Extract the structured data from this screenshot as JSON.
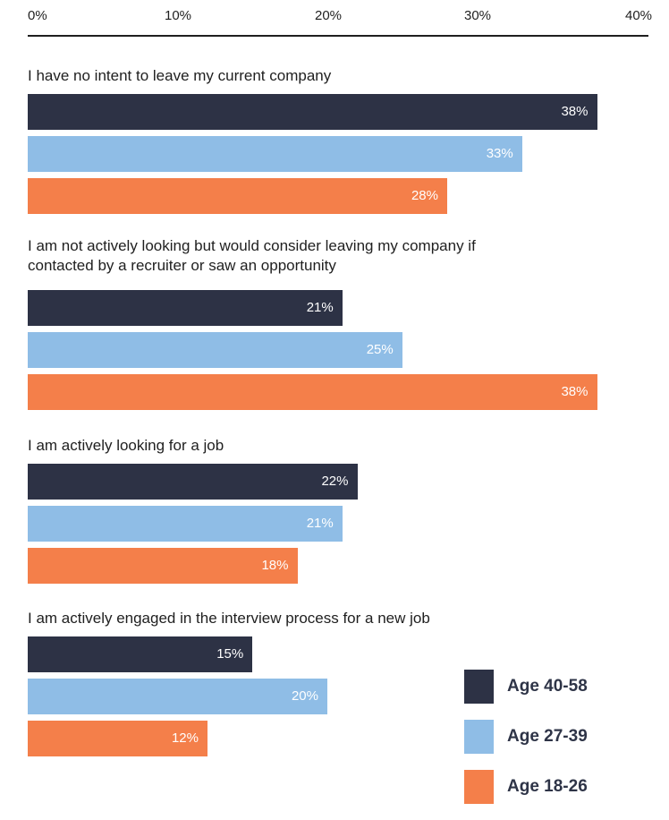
{
  "chart_data": {
    "type": "bar",
    "orientation": "horizontal",
    "xlim": [
      0,
      40
    ],
    "x_ticks": [
      "0%",
      "10%",
      "20%",
      "30%",
      "40%"
    ],
    "categories": [
      "I have no intent to leave my current company",
      "I am not actively looking but would consider leaving my company if contacted by a recruiter or saw an opportunity",
      "I am actively looking for a job",
      "I am actively engaged in the interview process for a new job"
    ],
    "series": [
      {
        "name": "Age 40-58",
        "color": "#2d3245",
        "values": [
          38,
          21,
          22,
          15
        ],
        "labels": [
          "38%",
          "21%",
          "22%",
          "15%"
        ]
      },
      {
        "name": "Age 27-39",
        "color": "#8fbde6",
        "values": [
          33,
          25,
          21,
          20
        ],
        "labels": [
          "33%",
          "25%",
          "21%",
          "20%"
        ]
      },
      {
        "name": "Age 18-26",
        "color": "#f47f4a",
        "values": [
          28,
          38,
          18,
          12
        ],
        "labels": [
          "28%",
          "38%",
          "18%",
          "12%"
        ]
      }
    ],
    "legend_position": "bottom-right",
    "grid": false
  }
}
